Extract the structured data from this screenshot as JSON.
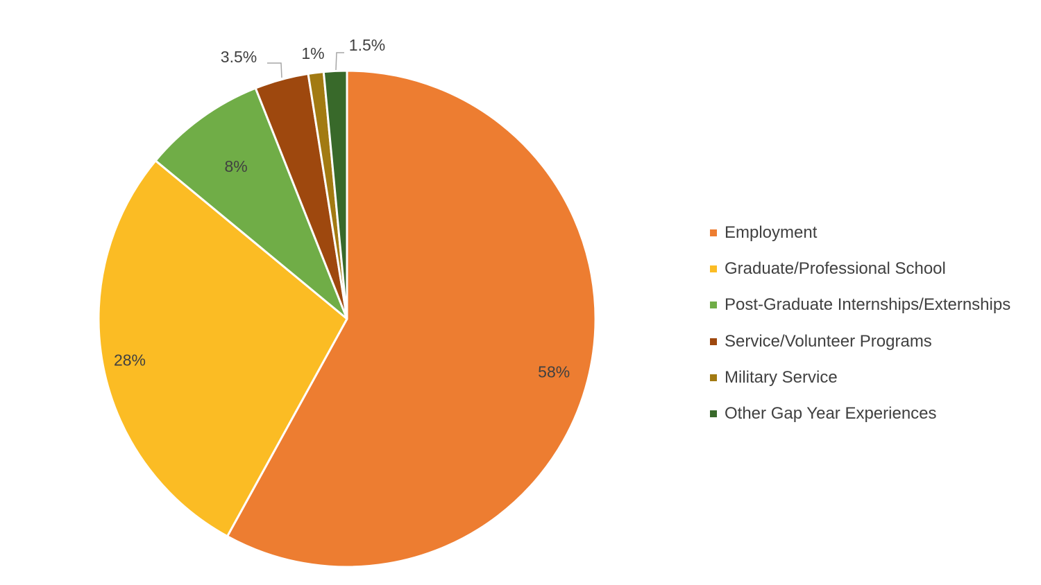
{
  "chart_data": {
    "type": "pie",
    "title": "",
    "start_angle_deg": 0,
    "direction": "clockwise",
    "slices": [
      {
        "label": "Employment",
        "value": 58,
        "display": "58%",
        "color": "#ED7D31"
      },
      {
        "label": "Graduate/Professional School",
        "value": 28,
        "display": "28%",
        "color": "#FBBC24"
      },
      {
        "label": "Post-Graduate Internships/Externships",
        "value": 8,
        "display": "8%",
        "color": "#70AD47"
      },
      {
        "label": "Service/Volunteer Programs",
        "value": 3.5,
        "display": "3.5%",
        "color": "#9E480E"
      },
      {
        "label": "Military Service",
        "value": 1,
        "display": "1%",
        "color": "#A27A12"
      },
      {
        "label": "Other Gap Year Experiences",
        "value": 1.5,
        "display": "1.5%",
        "color": "#38692A"
      }
    ],
    "legend_position": "right"
  }
}
